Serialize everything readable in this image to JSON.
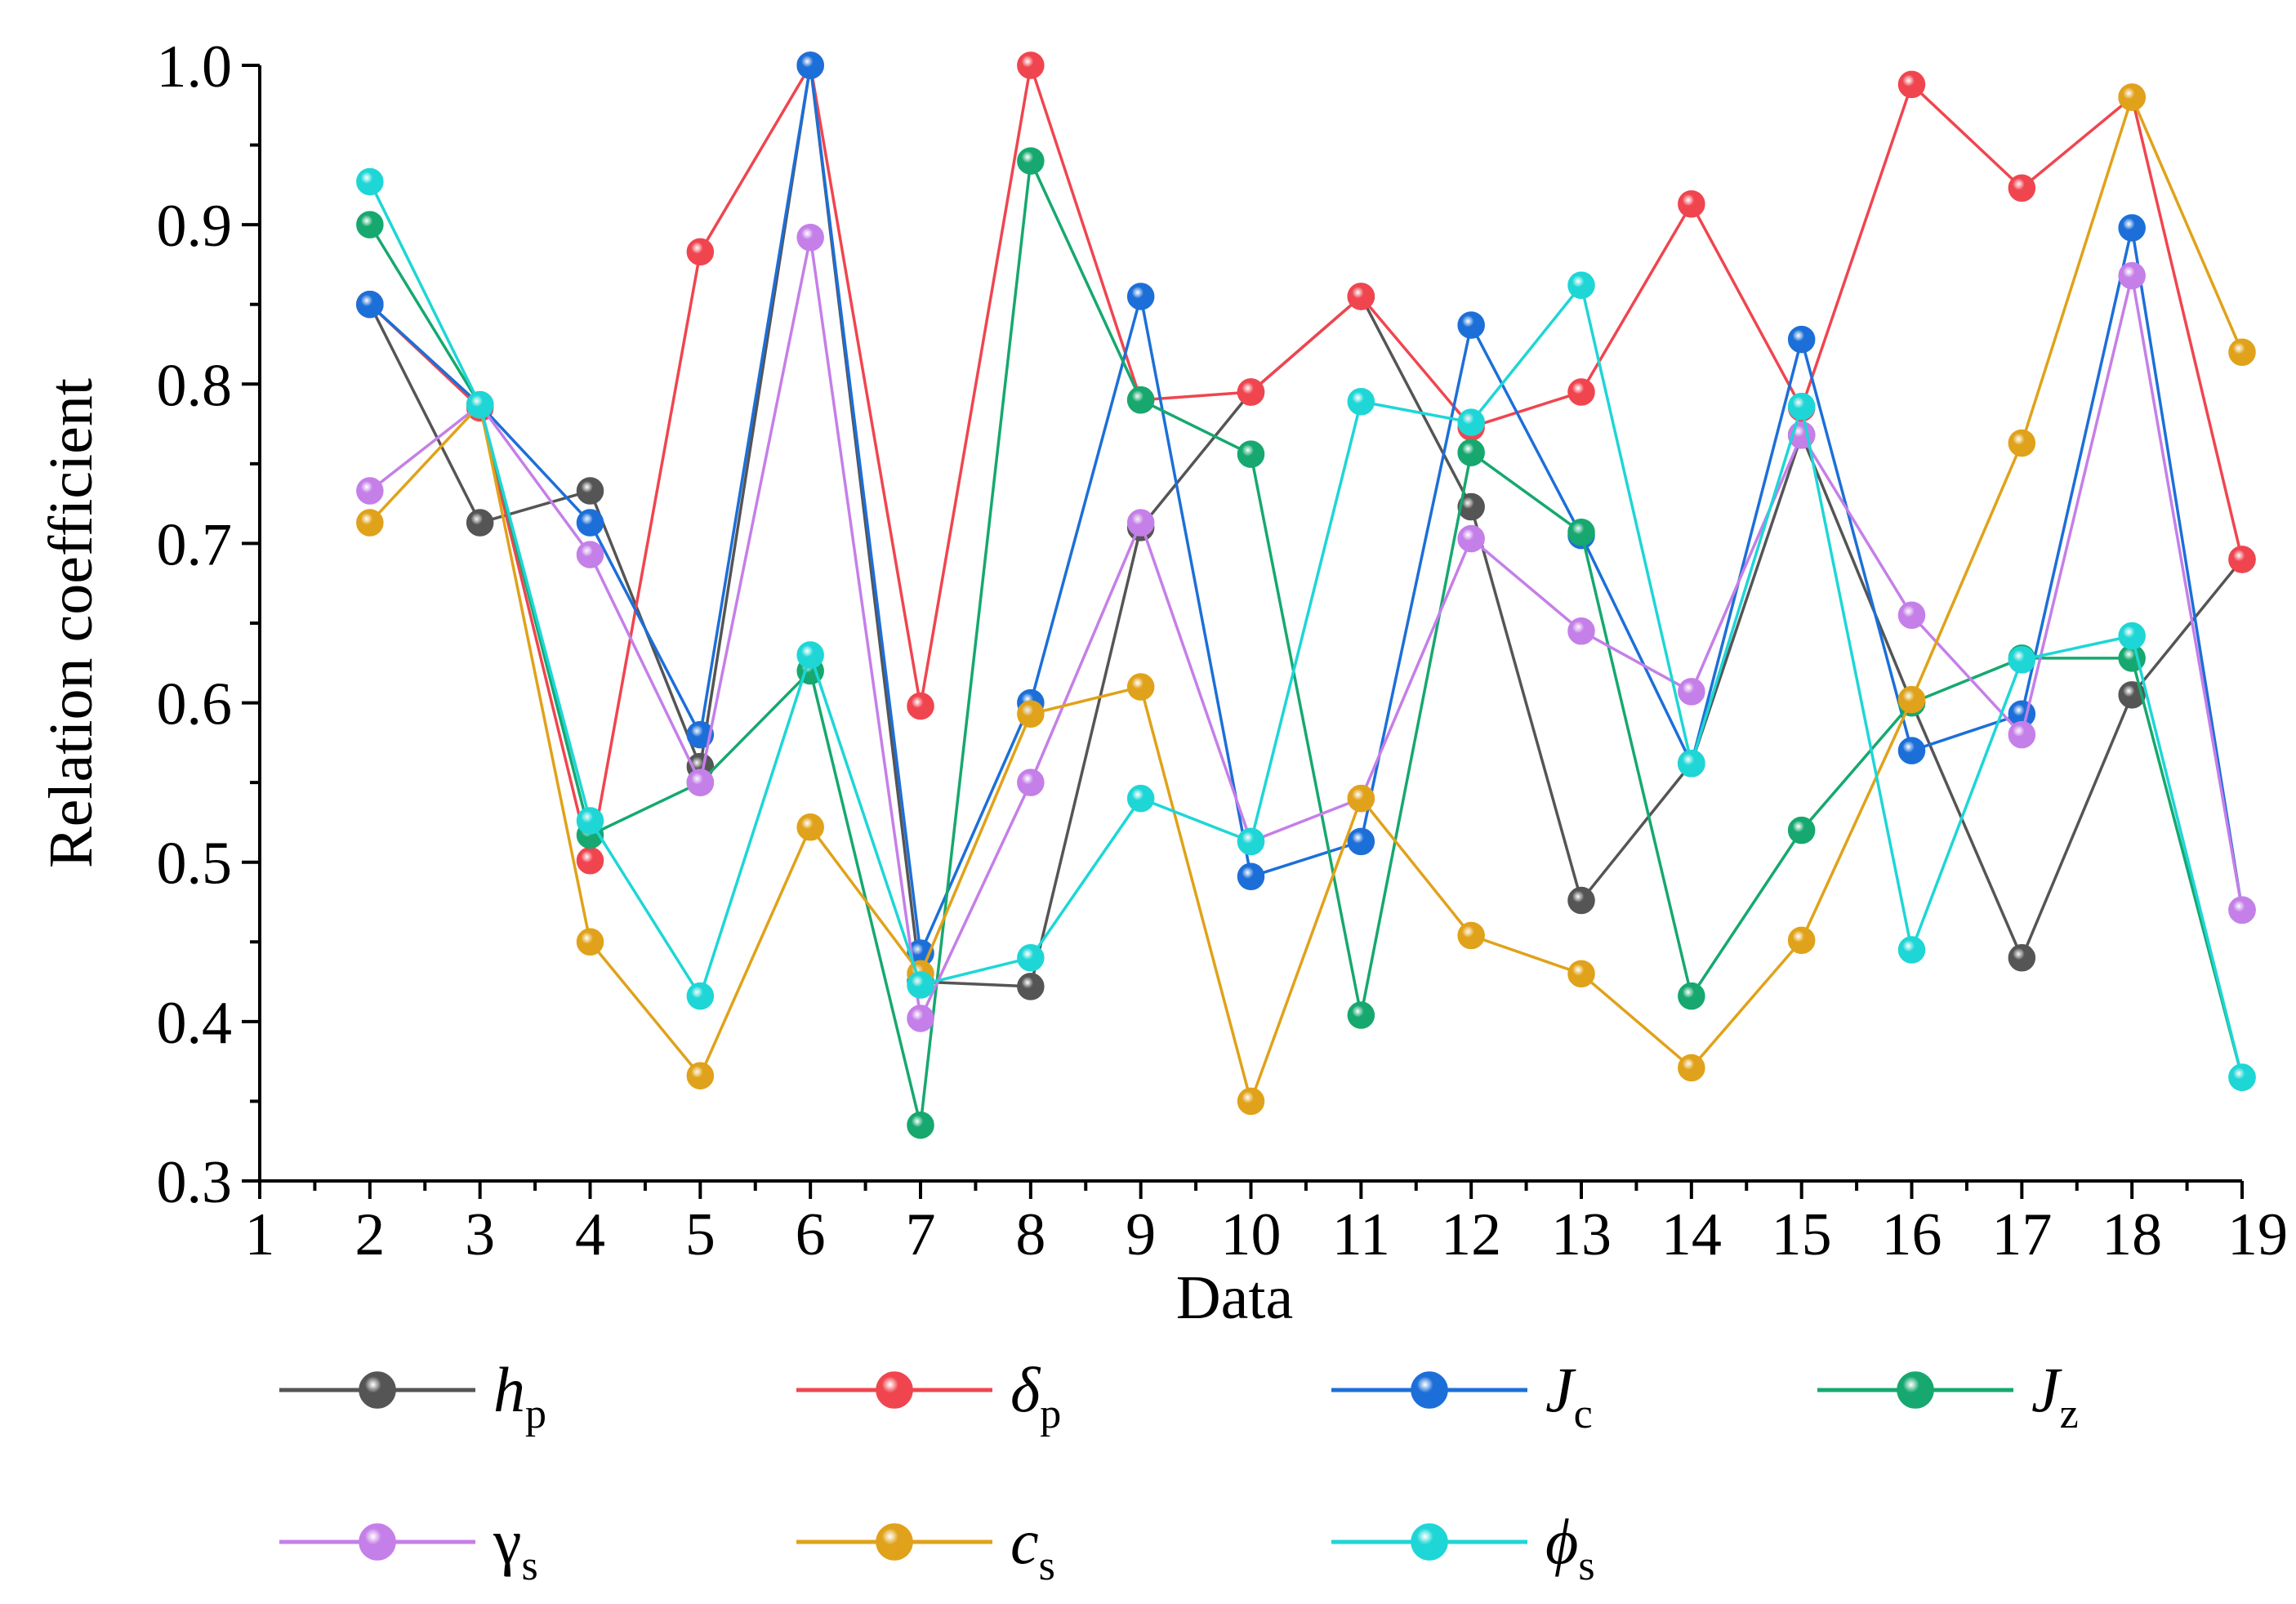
{
  "chart_data": {
    "type": "line",
    "title": "",
    "xlabel": "Data",
    "ylabel": "Relation coefficient",
    "xlim": [
      1,
      19
    ],
    "ylim": [
      0.3,
      1.0
    ],
    "x_ticks": [
      "1",
      "2",
      "3",
      "4",
      "5",
      "6",
      "7",
      "8",
      "9",
      "10",
      "11",
      "12",
      "13",
      "14",
      "15",
      "16",
      "17",
      "18",
      "19"
    ],
    "y_ticks": [
      "0.3",
      "0.4",
      "0.5",
      "0.6",
      "0.7",
      "0.8",
      "0.9",
      "1.0"
    ],
    "x": [
      2,
      3,
      4,
      5,
      6,
      7,
      8,
      9,
      10,
      11,
      12,
      13,
      14,
      15,
      16,
      17,
      18,
      19
    ],
    "legend_position": "bottom",
    "series": [
      {
        "name": "h",
        "sub": "p",
        "italic": true,
        "color": "#555555",
        "values": [
          0.85,
          0.713,
          0.733,
          0.56,
          1.0,
          0.425,
          0.422,
          0.71,
          0.795,
          0.855,
          0.723,
          0.476,
          0.562,
          0.768,
          0.6,
          0.44,
          0.605,
          0.69
        ]
      },
      {
        "name": "δ",
        "sub": "p",
        "italic": true,
        "color": "#f0454f",
        "values": [
          0.85,
          0.785,
          0.501,
          0.883,
          1.0,
          0.598,
          1.0,
          0.79,
          0.795,
          0.855,
          0.773,
          0.795,
          0.913,
          0.785,
          0.988,
          0.923,
          0.98,
          0.69
        ]
      },
      {
        "name": "J",
        "sub": "c",
        "italic": true,
        "color": "#1c6fd8",
        "values": [
          0.85,
          0.787,
          0.713,
          0.58,
          1.0,
          0.443,
          0.6,
          0.855,
          0.491,
          0.513,
          0.837,
          0.705,
          0.562,
          0.828,
          0.57,
          0.593,
          0.898,
          0.47
        ]
      },
      {
        "name": "J",
        "sub": "z",
        "italic": true,
        "color": "#16a86f",
        "values": [
          0.9,
          0.787,
          0.517,
          0.55,
          0.62,
          0.335,
          0.94,
          0.79,
          0.756,
          0.404,
          0.757,
          0.707,
          0.416,
          0.52,
          0.6,
          0.628,
          0.628,
          0.365
        ]
      },
      {
        "name": "γ",
        "sub": "s",
        "italic": false,
        "color": "#c57fe8",
        "values": [
          0.733,
          0.787,
          0.693,
          0.55,
          0.892,
          0.402,
          0.55,
          0.713,
          0.513,
          0.54,
          0.703,
          0.645,
          0.607,
          0.768,
          0.655,
          0.58,
          0.868,
          0.47
        ]
      },
      {
        "name": "c",
        "sub": "s",
        "italic": true,
        "color": "#e0a21a",
        "values": [
          0.713,
          0.787,
          0.45,
          0.366,
          0.522,
          0.43,
          0.593,
          0.61,
          0.35,
          0.54,
          0.454,
          0.43,
          0.371,
          0.451,
          0.602,
          0.763,
          0.98,
          0.82
        ]
      },
      {
        "name": "ϕ",
        "sub": "s",
        "italic": true,
        "color": "#1ed6d6",
        "values": [
          0.927,
          0.787,
          0.526,
          0.416,
          0.63,
          0.423,
          0.44,
          0.54,
          0.513,
          0.789,
          0.776,
          0.862,
          0.562,
          0.786,
          0.445,
          0.627,
          0.642,
          0.365
        ]
      }
    ]
  }
}
